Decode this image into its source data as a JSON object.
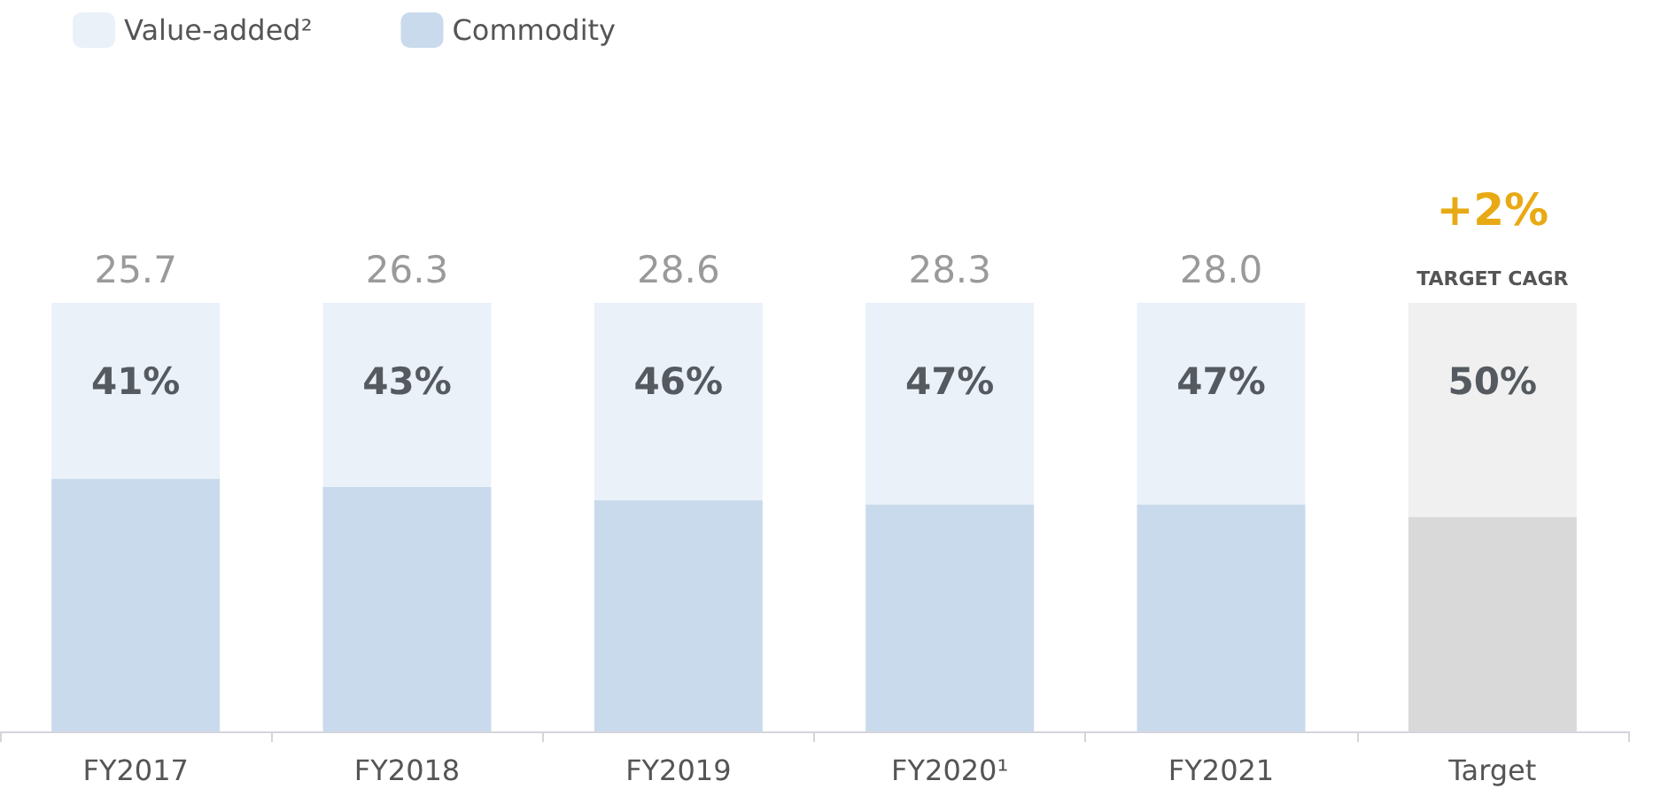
{
  "chart_data": {
    "type": "bar",
    "stacked": true,
    "legend": "top left",
    "categories": [
      "FY2017",
      "FY2018",
      "FY2019",
      "FY2020¹",
      "FY2021",
      "Target"
    ],
    "series": [
      {
        "name": "Commodity",
        "color": "#c9daec",
        "colors": [
          "#c9daec",
          "#c9daec",
          "#c9daec",
          "#c9daec",
          "#c9daec",
          "#d9d9d9"
        ],
        "values": [
          59,
          57,
          54,
          53,
          53,
          50
        ]
      },
      {
        "name": "Value-added²",
        "color": "#ebf1f9",
        "colors": [
          "#ebf1f9",
          "#ebf1f9",
          "#ebf1f9",
          "#ebf1f9",
          "#ebf1f9",
          "#f0f0f0"
        ],
        "values": [
          41,
          43,
          46,
          47,
          47,
          50
        ],
        "value_labels": [
          "41%",
          "43%",
          "46%",
          "47%",
          "47%",
          "50%"
        ]
      }
    ],
    "annotations": [
      {
        "text": "+2%",
        "x": "Target",
        "y": 100
      },
      {
        "text": "TARGET CAGR",
        "x": "Target",
        "y": 100
      },
      {
        "text": "25.7",
        "x": "FY2017",
        "y": 100
      },
      {
        "text": "26.3",
        "x": "FY2018",
        "y": 100
      },
      {
        "text": "28.6",
        "x": "FY2019",
        "y": 100
      },
      {
        "text": "28.3",
        "x": "FY2020¹",
        "y": 100
      },
      {
        "text": "28.0",
        "x": "FY2021",
        "y": 100
      }
    ]
  }
}
